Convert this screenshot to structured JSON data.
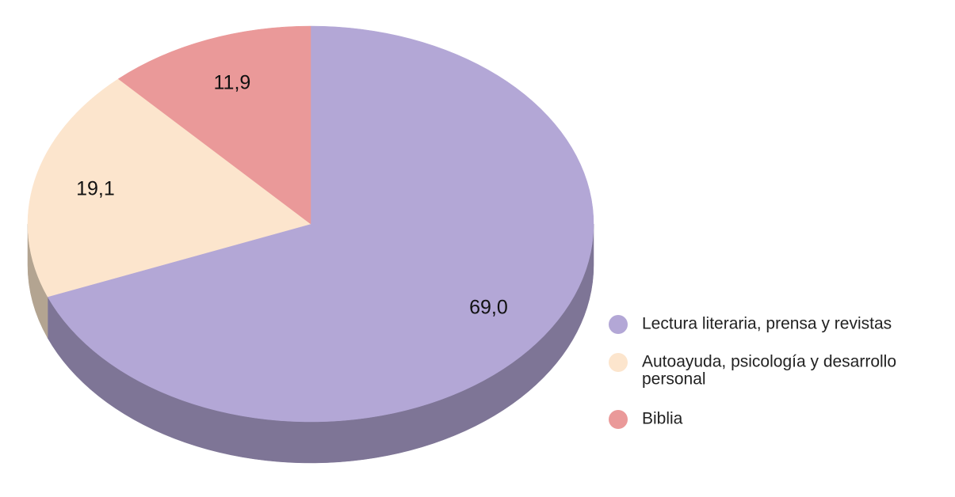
{
  "chart_data": {
    "type": "pie",
    "style": "3d",
    "legend_position": "right",
    "slices": [
      {
        "label": "Lectura literaria, prensa y revistas",
        "value": 69.0,
        "value_text": "69,0",
        "color": "#b3a7d6",
        "side_color": "#7e7596"
      },
      {
        "label": "Autoayuda, psicología y desarrollo personal",
        "value": 19.1,
        "value_text": "19,1",
        "color": "#fce5cd",
        "side_color": "#b3a491"
      },
      {
        "label": "Biblia",
        "value": 11.9,
        "value_text": "11,9",
        "color": "#ea9999",
        "side_color": "#a36b6b"
      }
    ],
    "legend": [
      {
        "lines": [
          "Lectura literaria, prensa y revistas"
        ]
      },
      {
        "lines": [
          "Autoayuda, psicología y desarrollo",
          "personal"
        ]
      },
      {
        "lines": [
          "Biblia"
        ]
      }
    ]
  }
}
